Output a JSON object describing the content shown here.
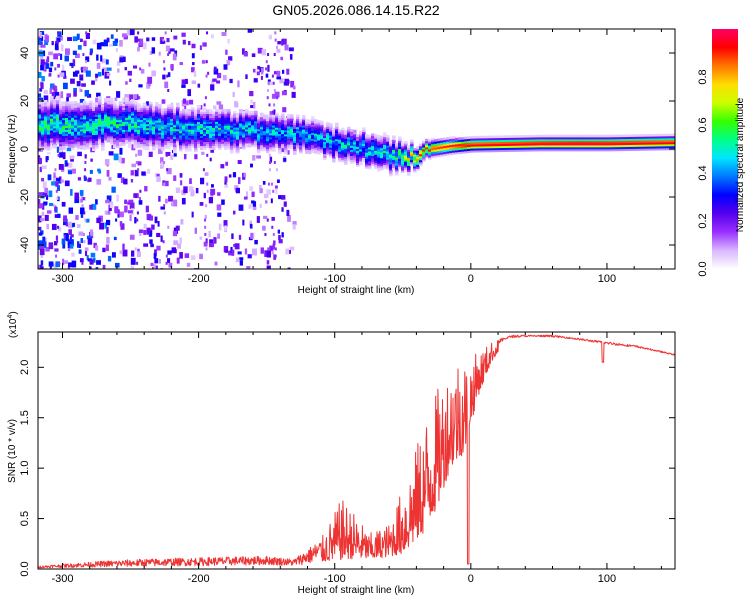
{
  "figure_title": "GN05.2026.086.14.15.R22",
  "chart_data": [
    {
      "type": "heatmap",
      "title": "GN05.2026.086.14.15.R22",
      "xlabel": "Height of straight line (km)",
      "ylabel": "Frequency (Hz)",
      "xlim": [
        -318,
        150
      ],
      "ylim": [
        -50,
        50
      ],
      "xticks": [
        -300,
        -200,
        -100,
        0,
        100
      ],
      "yticks": [
        -40,
        -20,
        0,
        20,
        40
      ],
      "xtick_labels": [
        "-300",
        "-200",
        "-100",
        "0",
        "100"
      ],
      "ytick_labels": [
        "-40",
        "-20",
        "0",
        "20",
        "40"
      ],
      "colorbar": {
        "label": "Normalized spectral amplitude",
        "range": [
          0,
          1
        ],
        "ticks": [
          0.0,
          0.2,
          0.4,
          0.6,
          0.8
        ],
        "tick_labels": [
          "0.0",
          "0.2",
          "0.4",
          "0.6",
          "0.8"
        ],
        "colors": [
          "#ffffff",
          "#d9b8ff",
          "#9b30ff",
          "#5500ee",
          "#0000ff",
          "#0077ff",
          "#00e5ff",
          "#00ff88",
          "#33ff00",
          "#ccff00",
          "#ffdd00",
          "#ff7700",
          "#ff0000",
          "#ff0066"
        ]
      },
      "band_center_hz": [
        {
          "x": -310,
          "f": 10
        },
        {
          "x": -250,
          "f": 10
        },
        {
          "x": -200,
          "f": 8
        },
        {
          "x": -150,
          "f": 7
        },
        {
          "x": -120,
          "f": 5
        },
        {
          "x": -100,
          "f": 2
        },
        {
          "x": -80,
          "f": 0
        },
        {
          "x": -65,
          "f": -2
        },
        {
          "x": -50,
          "f": -4
        },
        {
          "x": -40,
          "f": -3
        },
        {
          "x": -30,
          "f": 0
        },
        {
          "x": -15,
          "f": 1
        },
        {
          "x": 0,
          "f": 1.5
        },
        {
          "x": 50,
          "f": 2
        },
        {
          "x": 100,
          "f": 2
        },
        {
          "x": 150,
          "f": 2.5
        }
      ],
      "band_halfwidth_hz": [
        {
          "x": -310,
          "w": 7
        },
        {
          "x": -200,
          "w": 6
        },
        {
          "x": -120,
          "w": 5
        },
        {
          "x": -60,
          "w": 5
        },
        {
          "x": -35,
          "w": 2.5
        },
        {
          "x": 0,
          "w": 2
        },
        {
          "x": 150,
          "w": 2
        }
      ],
      "peak_amplitude": [
        {
          "x": -310,
          "a": 0.55
        },
        {
          "x": -200,
          "a": 0.5
        },
        {
          "x": -120,
          "a": 0.45
        },
        {
          "x": -60,
          "a": 0.5
        },
        {
          "x": -40,
          "a": 0.85
        },
        {
          "x": 0,
          "a": 0.95
        },
        {
          "x": 80,
          "a": 1.0
        },
        {
          "x": 150,
          "a": 0.95
        }
      ]
    },
    {
      "type": "line",
      "title": "",
      "xlabel": "Height of straight line (km)",
      "ylabel": "SNR (10 * v/v)",
      "y_scale_label": "(x10",
      "y_scale_exponent": "4",
      "xlim": [
        -318,
        150
      ],
      "ylim": [
        0,
        2.35
      ],
      "xticks": [
        -300,
        -200,
        -100,
        0,
        100
      ],
      "yticks": [
        0.0,
        0.5,
        1.0,
        1.5,
        2.0
      ],
      "xtick_labels": [
        "-300",
        "-200",
        "-100",
        "0",
        "100"
      ],
      "ytick_labels": [
        "0.0",
        "0.5",
        "1.0",
        "1.5",
        "2.0"
      ],
      "color": "#ee3333",
      "series": [
        {
          "name": "SNR",
          "envelope_base": [
            {
              "x": -318,
              "y": 0.01
            },
            {
              "x": -270,
              "y": 0.02
            },
            {
              "x": -150,
              "y": 0.04
            },
            {
              "x": -130,
              "y": 0.03
            },
            {
              "x": -110,
              "y": 0.07
            },
            {
              "x": -90,
              "y": 0.1
            },
            {
              "x": -70,
              "y": 0.1
            },
            {
              "x": -50,
              "y": 0.15
            },
            {
              "x": -35,
              "y": 0.35
            },
            {
              "x": -25,
              "y": 0.6
            },
            {
              "x": -15,
              "y": 1.0
            },
            {
              "x": -5,
              "y": 1.15
            },
            {
              "x": 5,
              "y": 1.7
            },
            {
              "x": 15,
              "y": 2.05
            },
            {
              "x": 25,
              "y": 2.25
            },
            {
              "x": 40,
              "y": 2.28
            },
            {
              "x": 70,
              "y": 2.27
            },
            {
              "x": 100,
              "y": 2.2
            },
            {
              "x": 130,
              "y": 2.16
            },
            {
              "x": 150,
              "y": 2.1
            }
          ],
          "envelope_peak": [
            {
              "x": -318,
              "y": 0.03
            },
            {
              "x": -270,
              "y": 0.08
            },
            {
              "x": -240,
              "y": 0.1
            },
            {
              "x": -150,
              "y": 0.13
            },
            {
              "x": -130,
              "y": 0.1
            },
            {
              "x": -110,
              "y": 0.3
            },
            {
              "x": -95,
              "y": 0.7
            },
            {
              "x": -85,
              "y": 0.55
            },
            {
              "x": -75,
              "y": 0.35
            },
            {
              "x": -60,
              "y": 0.45
            },
            {
              "x": -45,
              "y": 1.0
            },
            {
              "x": -30,
              "y": 1.65
            },
            {
              "x": -20,
              "y": 1.9
            },
            {
              "x": -10,
              "y": 2.15
            },
            {
              "x": 0,
              "y": 2.1
            },
            {
              "x": 15,
              "y": 2.25
            },
            {
              "x": 30,
              "y": 2.32
            },
            {
              "x": 60,
              "y": 2.32
            },
            {
              "x": 90,
              "y": 2.27
            },
            {
              "x": 120,
              "y": 2.22
            },
            {
              "x": 150,
              "y": 2.13
            }
          ],
          "notable_points": [
            {
              "x": -2,
              "y": 0.05
            },
            {
              "x": 97,
              "y": 2.05
            }
          ]
        }
      ]
    }
  ]
}
